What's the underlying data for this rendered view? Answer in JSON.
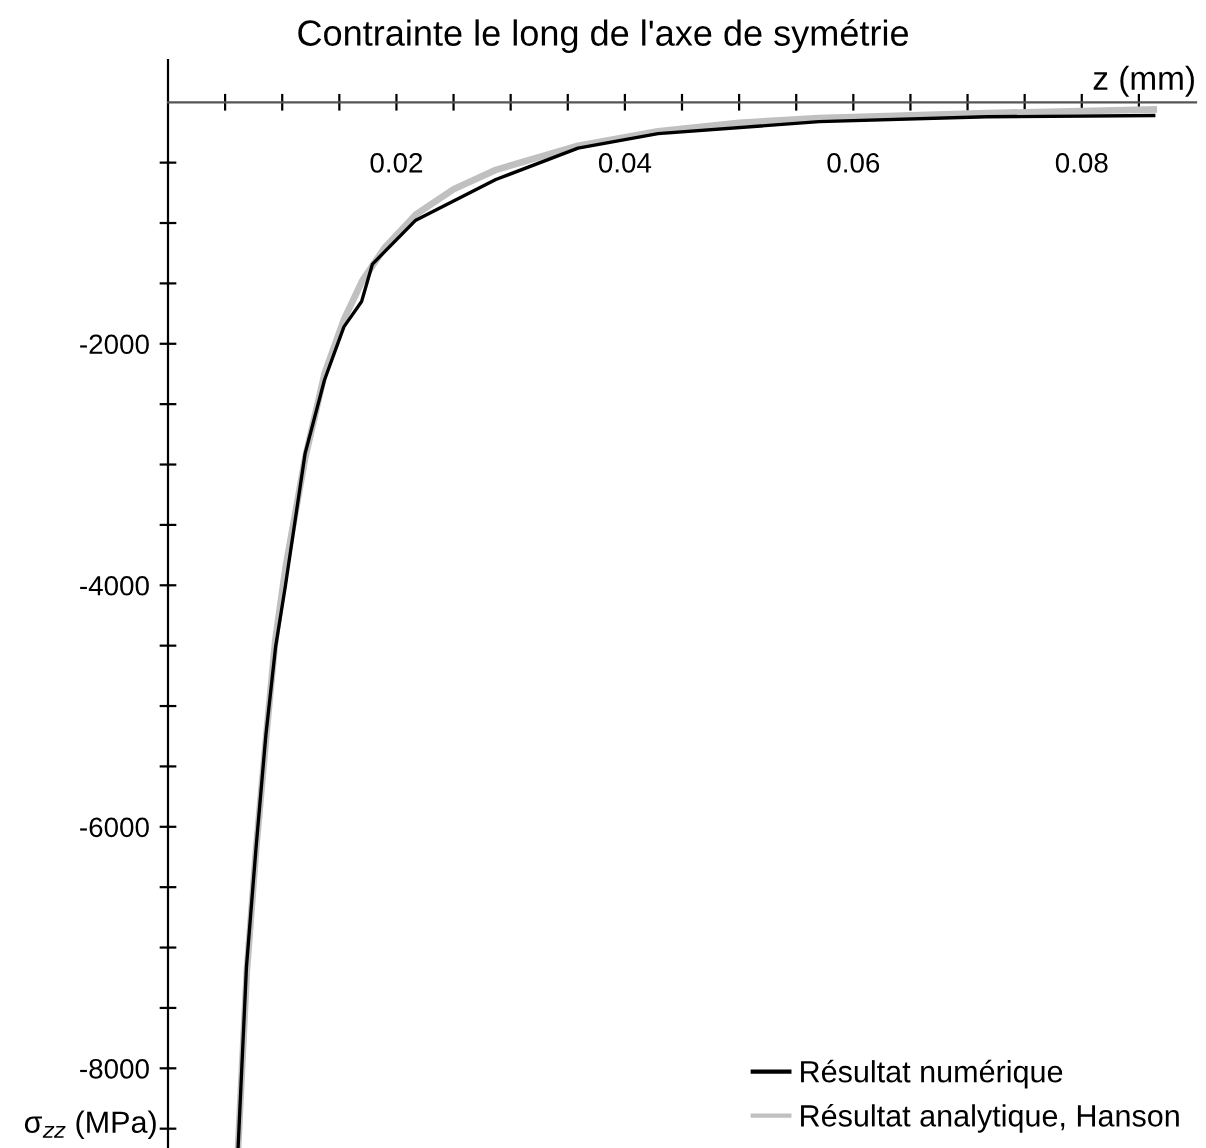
{
  "chart_data": {
    "type": "line",
    "title": "Contrainte le long de l'axe de symétrie",
    "xlabel": "z (mm)",
    "ylabel": "σ$_{zz}$ (MPa)",
    "xlim": [
      0,
      0.09
    ],
    "ylim": [
      -8660,
      350
    ],
    "xticks": [
      {
        "value": 0.005,
        "label": null
      },
      {
        "value": 0.01,
        "label": null
      },
      {
        "value": 0.015,
        "label": null
      },
      {
        "value": 0.02,
        "label": "0.02"
      },
      {
        "value": 0.025,
        "label": null
      },
      {
        "value": 0.03,
        "label": null
      },
      {
        "value": 0.035,
        "label": null
      },
      {
        "value": 0.04,
        "label": "0.04"
      },
      {
        "value": 0.045,
        "label": null
      },
      {
        "value": 0.05,
        "label": null
      },
      {
        "value": 0.055,
        "label": null
      },
      {
        "value": 0.06,
        "label": "0.06"
      },
      {
        "value": 0.065,
        "label": null
      },
      {
        "value": 0.07,
        "label": null
      },
      {
        "value": 0.075,
        "label": null
      },
      {
        "value": 0.08,
        "label": "0.08"
      },
      {
        "value": 0.085,
        "label": null
      }
    ],
    "yticks": [
      {
        "value": -500,
        "label": null
      },
      {
        "value": -1000,
        "label": null
      },
      {
        "value": -1500,
        "label": null
      },
      -2000,
      {
        "value": -2500,
        "label": null
      },
      {
        "value": -3000,
        "label": null
      },
      {
        "value": -3500,
        "label": null
      },
      -4000,
      {
        "value": -4500,
        "label": null
      },
      {
        "value": -5000,
        "label": null
      },
      {
        "value": -5500,
        "label": null
      },
      -6000,
      {
        "value": -6500,
        "label": null
      },
      {
        "value": -7000,
        "label": null
      },
      {
        "value": -7500,
        "label": null
      },
      -8000,
      {
        "value": -8500,
        "label": null
      }
    ],
    "legend": "bottom right",
    "grid": false,
    "series": [
      {
        "name": "Résultat numérique",
        "color": "#000000",
        "x": [
          0.00614,
          0.00687,
          0.00772,
          0.00857,
          0.00942,
          0.01027,
          0.012,
          0.0137,
          0.0154,
          0.01695,
          0.0179,
          0.02165,
          0.0287,
          0.0359,
          0.0429,
          0.057,
          0.0717,
          0.0863
        ],
        "values": [
          -8650,
          -7160,
          -6160,
          -5240,
          -4510,
          -4010,
          -2910,
          -2300,
          -1860,
          -1650,
          -1340,
          -980,
          -640,
          -380,
          -260,
          -160,
          -120,
          -110
        ]
      },
      {
        "name": "Résultat analytique, Hanson",
        "color": "#c0c0c0",
        "x": [
          0.00614,
          0.0069,
          0.0077,
          0.0086,
          0.0094,
          0.0103,
          0.012,
          0.0137,
          0.0154,
          0.017,
          0.019,
          0.0217,
          0.025,
          0.0287,
          0.0359,
          0.0429,
          0.05,
          0.057,
          0.0717,
          0.0863
        ],
        "values": [
          -8650,
          -7200,
          -6200,
          -5250,
          -4450,
          -3850,
          -2950,
          -2250,
          -1800,
          -1480,
          -1200,
          -930,
          -720,
          -560,
          -360,
          -240,
          -170,
          -130,
          -90,
          -60
        ]
      }
    ]
  }
}
